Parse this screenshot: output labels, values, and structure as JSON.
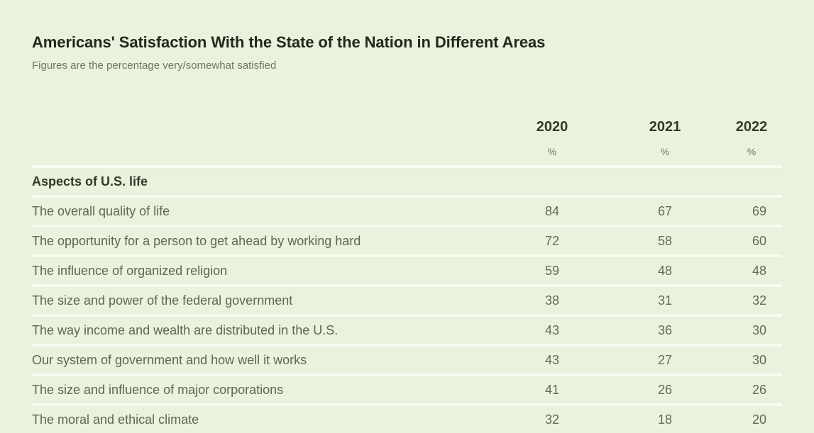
{
  "page": {
    "background_color": "#eaf1dc",
    "divider_color": "#f9fbef",
    "title_color": "#23281c",
    "body_text_color": "#5f674f",
    "heading_text_color": "#333a29",
    "muted_text_color": "#6e7563"
  },
  "header": {
    "title": "Americans' Satisfaction With the State of the Nation in Different Areas",
    "subtitle": "Figures are the percentage very/somewhat satisfied"
  },
  "table": {
    "unit_label": "%"
  },
  "chart_data": {
    "type": "table",
    "title": "Americans' Satisfaction With the State of the Nation in Different Areas",
    "subtitle": "Figures are the percentage very/somewhat satisfied",
    "value_unit": "% very/somewhat satisfied",
    "columns": [
      "2020",
      "2021",
      "2022"
    ],
    "section": "Aspects of U.S. life",
    "series": [
      {
        "name": "The overall quality of life",
        "values": [
          84,
          67,
          69
        ]
      },
      {
        "name": "The opportunity for a person to get ahead by working hard",
        "values": [
          72,
          58,
          60
        ]
      },
      {
        "name": "The influence of organized religion",
        "values": [
          59,
          48,
          48
        ]
      },
      {
        "name": "The size and power of the federal government",
        "values": [
          38,
          31,
          32
        ]
      },
      {
        "name": "The way income and wealth are distributed in the U.S.",
        "values": [
          43,
          36,
          30
        ]
      },
      {
        "name": "Our system of government and how well it works",
        "values": [
          43,
          27,
          30
        ]
      },
      {
        "name": "The size and influence of major corporations",
        "values": [
          41,
          26,
          26
        ]
      },
      {
        "name": "The moral and ethical climate",
        "values": [
          32,
          18,
          20
        ]
      }
    ]
  }
}
